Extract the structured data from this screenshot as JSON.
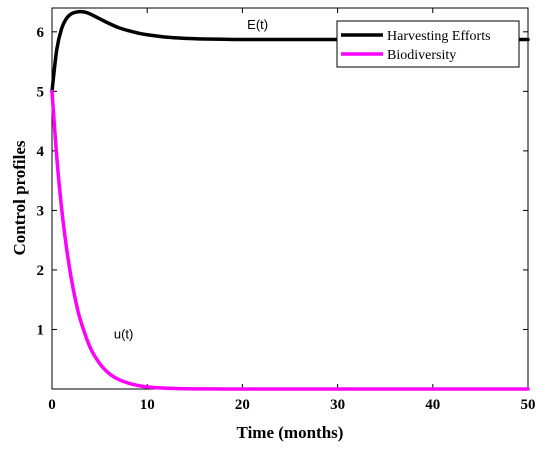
{
  "chart_data": {
    "type": "line",
    "xlabel": "Time (months)",
    "ylabel": "Control profiles",
    "xlim": [
      0,
      50
    ],
    "ylim": [
      0,
      6.4
    ],
    "xticks": [
      0,
      10,
      20,
      30,
      40,
      50
    ],
    "yticks": [
      1,
      2,
      3,
      4,
      5,
      6
    ],
    "grid": false,
    "legend_position": "top-right",
    "series": [
      {
        "name": "Harvesting  Efforts",
        "color": "#000000",
        "x": [
          0,
          0.5,
          1,
          1.5,
          2,
          2.5,
          3,
          3.5,
          4,
          5,
          6,
          7,
          8,
          9,
          10,
          12,
          14,
          16,
          18,
          20,
          25,
          30,
          35,
          40,
          45,
          50
        ],
        "y": [
          5.0,
          5.7,
          6.05,
          6.22,
          6.3,
          6.33,
          6.34,
          6.33,
          6.3,
          6.22,
          6.14,
          6.07,
          6.02,
          5.98,
          5.95,
          5.91,
          5.89,
          5.88,
          5.875,
          5.87,
          5.87,
          5.87,
          5.87,
          5.87,
          5.87,
          5.87
        ]
      },
      {
        "name": "Biodiversity",
        "color": "#ff00ff",
        "x": [
          0,
          0.5,
          1,
          1.5,
          2,
          2.5,
          3,
          4,
          5,
          6,
          7,
          8,
          9,
          10,
          11,
          12,
          14,
          16,
          18,
          20,
          25,
          30,
          35,
          40,
          45,
          50
        ],
        "y": [
          5.0,
          3.9,
          3.05,
          2.4,
          1.88,
          1.47,
          1.15,
          0.7,
          0.43,
          0.26,
          0.16,
          0.1,
          0.06,
          0.035,
          0.022,
          0.013,
          0.005,
          0.002,
          0.001,
          0.0,
          0.0,
          0.0,
          0.0,
          0.0,
          0.0,
          0.0
        ]
      }
    ],
    "annotations": [
      {
        "text": "E(t)",
        "x": 20.5,
        "y": 6.05
      },
      {
        "text": "u(t)",
        "x": 6.5,
        "y": 0.85
      }
    ]
  }
}
